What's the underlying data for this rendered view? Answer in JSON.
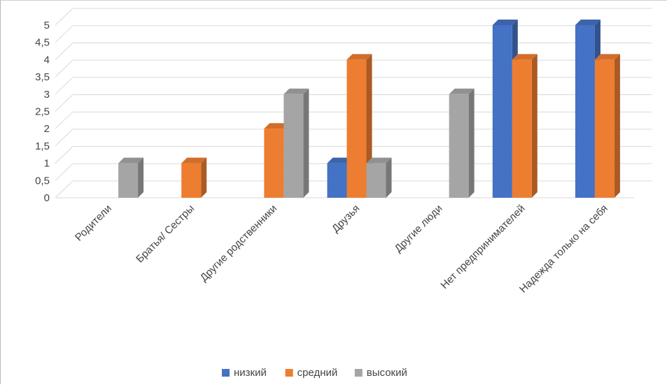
{
  "chart_data": {
    "type": "bar",
    "categories": [
      "Родители",
      "Братья/ Сестры",
      "Другие родственники",
      "Друзья",
      "Другие люди",
      "Нет предпринимателей",
      "Надежда только на себя"
    ],
    "series": [
      {
        "name": "низкий",
        "color": "#4472c4",
        "values": [
          0,
          0,
          0,
          1,
          0,
          5,
          5
        ]
      },
      {
        "name": "средний",
        "color": "#ed7d31",
        "values": [
          0,
          1,
          2,
          4,
          0,
          4,
          4
        ]
      },
      {
        "name": "высокий",
        "color": "#a5a5a5",
        "values": [
          1,
          0,
          3,
          1,
          3,
          0,
          0
        ]
      }
    ],
    "y_ticks": [
      "0",
      "0,5",
      "1",
      "1,5",
      "2",
      "2,5",
      "3",
      "3,5",
      "4",
      "4,5",
      "5"
    ],
    "ylim": [
      0,
      5
    ],
    "grid": true,
    "legend_position": "bottom",
    "style": "3d-clustered-column"
  }
}
